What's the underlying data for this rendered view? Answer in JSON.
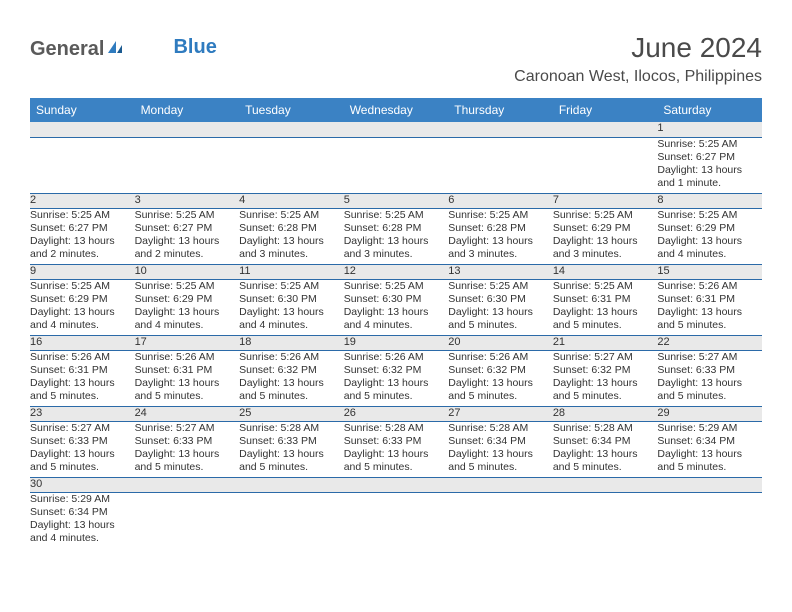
{
  "brand": {
    "part1": "General",
    "part2": "Blue"
  },
  "title": "June 2024",
  "location": "Caronoan West, Ilocos, Philippines",
  "colors": {
    "header_bg": "#3b82c4",
    "header_fg": "#ffffff",
    "daynum_bg": "#e9e9e9",
    "rule": "#2b6aa8",
    "text": "#333333",
    "brand_gray": "#5a5a5a",
    "brand_blue": "#2f7bbf"
  },
  "weekdays": [
    "Sunday",
    "Monday",
    "Tuesday",
    "Wednesday",
    "Thursday",
    "Friday",
    "Saturday"
  ],
  "weeks": [
    [
      null,
      null,
      null,
      null,
      null,
      null,
      {
        "n": "1",
        "sr": "Sunrise: 5:25 AM",
        "ss": "Sunset: 6:27 PM",
        "dl1": "Daylight: 13 hours",
        "dl2": "and 1 minute."
      }
    ],
    [
      {
        "n": "2",
        "sr": "Sunrise: 5:25 AM",
        "ss": "Sunset: 6:27 PM",
        "dl1": "Daylight: 13 hours",
        "dl2": "and 2 minutes."
      },
      {
        "n": "3",
        "sr": "Sunrise: 5:25 AM",
        "ss": "Sunset: 6:27 PM",
        "dl1": "Daylight: 13 hours",
        "dl2": "and 2 minutes."
      },
      {
        "n": "4",
        "sr": "Sunrise: 5:25 AM",
        "ss": "Sunset: 6:28 PM",
        "dl1": "Daylight: 13 hours",
        "dl2": "and 3 minutes."
      },
      {
        "n": "5",
        "sr": "Sunrise: 5:25 AM",
        "ss": "Sunset: 6:28 PM",
        "dl1": "Daylight: 13 hours",
        "dl2": "and 3 minutes."
      },
      {
        "n": "6",
        "sr": "Sunrise: 5:25 AM",
        "ss": "Sunset: 6:28 PM",
        "dl1": "Daylight: 13 hours",
        "dl2": "and 3 minutes."
      },
      {
        "n": "7",
        "sr": "Sunrise: 5:25 AM",
        "ss": "Sunset: 6:29 PM",
        "dl1": "Daylight: 13 hours",
        "dl2": "and 3 minutes."
      },
      {
        "n": "8",
        "sr": "Sunrise: 5:25 AM",
        "ss": "Sunset: 6:29 PM",
        "dl1": "Daylight: 13 hours",
        "dl2": "and 4 minutes."
      }
    ],
    [
      {
        "n": "9",
        "sr": "Sunrise: 5:25 AM",
        "ss": "Sunset: 6:29 PM",
        "dl1": "Daylight: 13 hours",
        "dl2": "and 4 minutes."
      },
      {
        "n": "10",
        "sr": "Sunrise: 5:25 AM",
        "ss": "Sunset: 6:29 PM",
        "dl1": "Daylight: 13 hours",
        "dl2": "and 4 minutes."
      },
      {
        "n": "11",
        "sr": "Sunrise: 5:25 AM",
        "ss": "Sunset: 6:30 PM",
        "dl1": "Daylight: 13 hours",
        "dl2": "and 4 minutes."
      },
      {
        "n": "12",
        "sr": "Sunrise: 5:25 AM",
        "ss": "Sunset: 6:30 PM",
        "dl1": "Daylight: 13 hours",
        "dl2": "and 4 minutes."
      },
      {
        "n": "13",
        "sr": "Sunrise: 5:25 AM",
        "ss": "Sunset: 6:30 PM",
        "dl1": "Daylight: 13 hours",
        "dl2": "and 5 minutes."
      },
      {
        "n": "14",
        "sr": "Sunrise: 5:25 AM",
        "ss": "Sunset: 6:31 PM",
        "dl1": "Daylight: 13 hours",
        "dl2": "and 5 minutes."
      },
      {
        "n": "15",
        "sr": "Sunrise: 5:26 AM",
        "ss": "Sunset: 6:31 PM",
        "dl1": "Daylight: 13 hours",
        "dl2": "and 5 minutes."
      }
    ],
    [
      {
        "n": "16",
        "sr": "Sunrise: 5:26 AM",
        "ss": "Sunset: 6:31 PM",
        "dl1": "Daylight: 13 hours",
        "dl2": "and 5 minutes."
      },
      {
        "n": "17",
        "sr": "Sunrise: 5:26 AM",
        "ss": "Sunset: 6:31 PM",
        "dl1": "Daylight: 13 hours",
        "dl2": "and 5 minutes."
      },
      {
        "n": "18",
        "sr": "Sunrise: 5:26 AM",
        "ss": "Sunset: 6:32 PM",
        "dl1": "Daylight: 13 hours",
        "dl2": "and 5 minutes."
      },
      {
        "n": "19",
        "sr": "Sunrise: 5:26 AM",
        "ss": "Sunset: 6:32 PM",
        "dl1": "Daylight: 13 hours",
        "dl2": "and 5 minutes."
      },
      {
        "n": "20",
        "sr": "Sunrise: 5:26 AM",
        "ss": "Sunset: 6:32 PM",
        "dl1": "Daylight: 13 hours",
        "dl2": "and 5 minutes."
      },
      {
        "n": "21",
        "sr": "Sunrise: 5:27 AM",
        "ss": "Sunset: 6:32 PM",
        "dl1": "Daylight: 13 hours",
        "dl2": "and 5 minutes."
      },
      {
        "n": "22",
        "sr": "Sunrise: 5:27 AM",
        "ss": "Sunset: 6:33 PM",
        "dl1": "Daylight: 13 hours",
        "dl2": "and 5 minutes."
      }
    ],
    [
      {
        "n": "23",
        "sr": "Sunrise: 5:27 AM",
        "ss": "Sunset: 6:33 PM",
        "dl1": "Daylight: 13 hours",
        "dl2": "and 5 minutes."
      },
      {
        "n": "24",
        "sr": "Sunrise: 5:27 AM",
        "ss": "Sunset: 6:33 PM",
        "dl1": "Daylight: 13 hours",
        "dl2": "and 5 minutes."
      },
      {
        "n": "25",
        "sr": "Sunrise: 5:28 AM",
        "ss": "Sunset: 6:33 PM",
        "dl1": "Daylight: 13 hours",
        "dl2": "and 5 minutes."
      },
      {
        "n": "26",
        "sr": "Sunrise: 5:28 AM",
        "ss": "Sunset: 6:33 PM",
        "dl1": "Daylight: 13 hours",
        "dl2": "and 5 minutes."
      },
      {
        "n": "27",
        "sr": "Sunrise: 5:28 AM",
        "ss": "Sunset: 6:34 PM",
        "dl1": "Daylight: 13 hours",
        "dl2": "and 5 minutes."
      },
      {
        "n": "28",
        "sr": "Sunrise: 5:28 AM",
        "ss": "Sunset: 6:34 PM",
        "dl1": "Daylight: 13 hours",
        "dl2": "and 5 minutes."
      },
      {
        "n": "29",
        "sr": "Sunrise: 5:29 AM",
        "ss": "Sunset: 6:34 PM",
        "dl1": "Daylight: 13 hours",
        "dl2": "and 5 minutes."
      }
    ],
    [
      {
        "n": "30",
        "sr": "Sunrise: 5:29 AM",
        "ss": "Sunset: 6:34 PM",
        "dl1": "Daylight: 13 hours",
        "dl2": "and 4 minutes."
      },
      null,
      null,
      null,
      null,
      null,
      null
    ]
  ]
}
